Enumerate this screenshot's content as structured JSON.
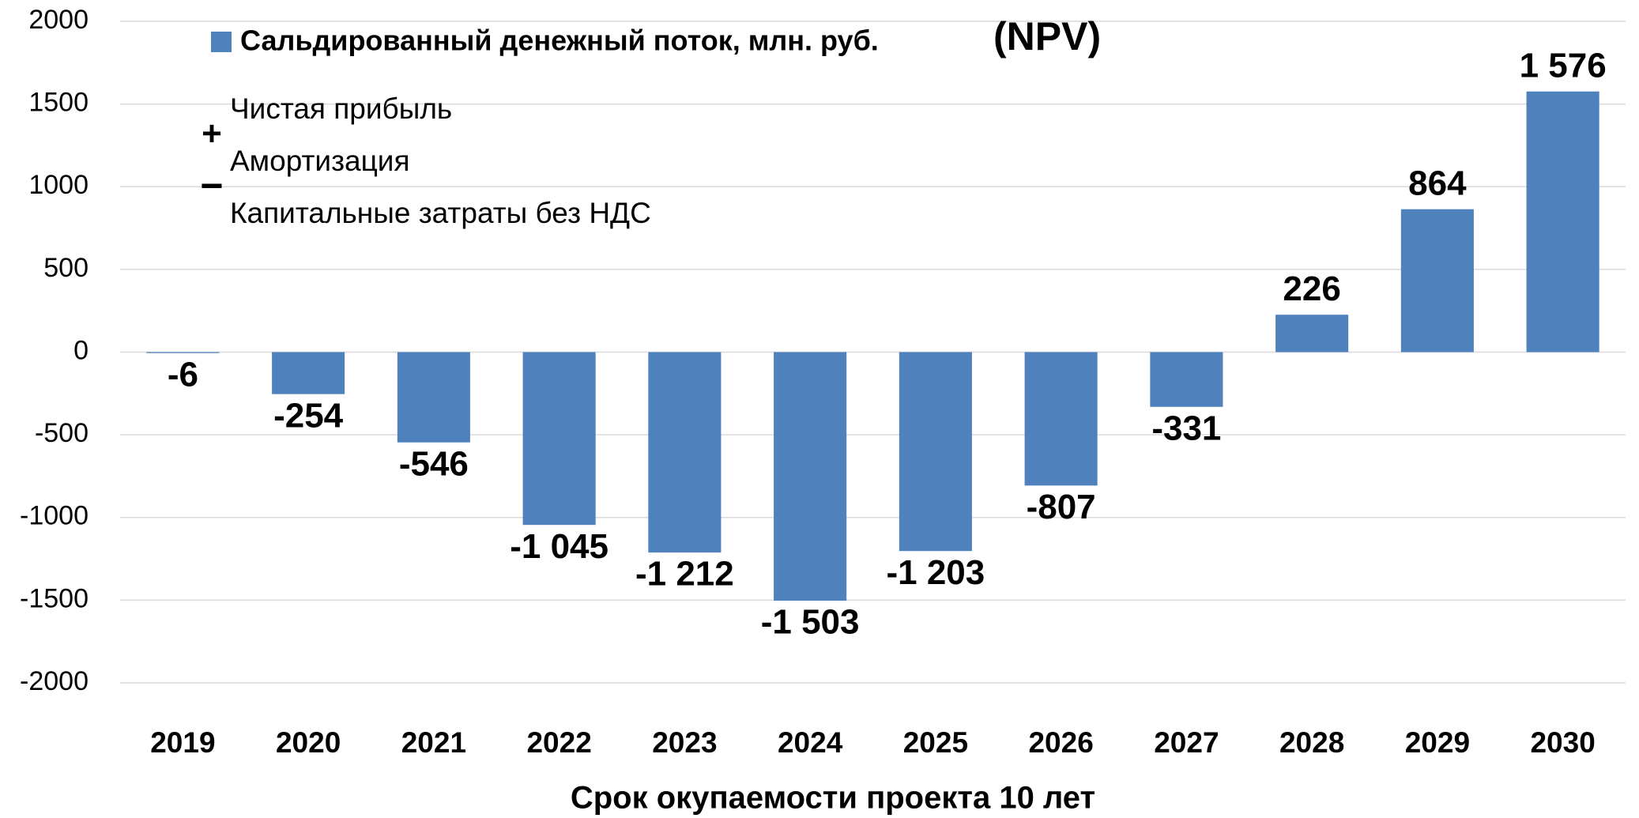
{
  "chart_data": {
    "type": "bar",
    "legend_label": "Сальдированный денежный поток, млн. руб.",
    "legend_suffix": "(NPV)",
    "annotations": [
      "Чистая прибыль",
      "+",
      "Амортизация",
      "−",
      "Капитальные затраты без НДС"
    ],
    "x_label": "Срок окупаемости проекта 10 лет",
    "categories": [
      "2019",
      "2020",
      "2021",
      "2022",
      "2023",
      "2024",
      "2025",
      "2026",
      "2027",
      "2028",
      "2029",
      "2030"
    ],
    "values": [
      -6,
      -254,
      -546,
      -1045,
      -1212,
      -1503,
      -1203,
      -807,
      -331,
      226,
      864,
      1576
    ],
    "value_labels": [
      "-6",
      "-254",
      "-546",
      "-1 045",
      "-1 212",
      "-1 503",
      "-1 203",
      "-807",
      "-331",
      "226",
      "864",
      "1 576"
    ],
    "color": "#4f81bd",
    "ylim": [
      -2000,
      2000
    ],
    "yticks": [
      -2000,
      -1500,
      -1000,
      -500,
      0,
      500,
      1000,
      1500,
      2000
    ],
    "grid": true
  }
}
